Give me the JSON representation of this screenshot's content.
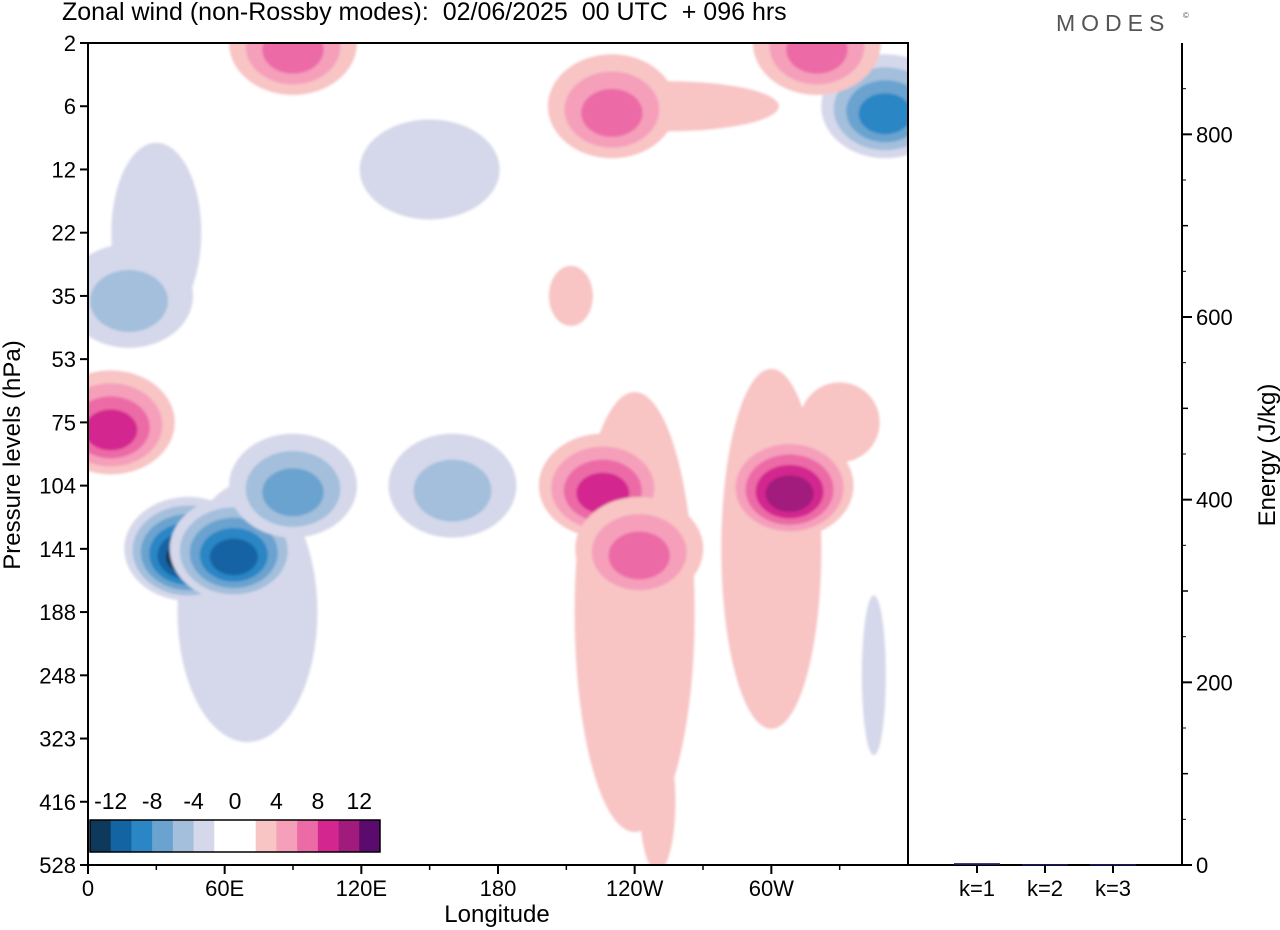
{
  "header": {
    "title": "Zonal wind (non-Rossby modes):  02/06/2025  00 UTC  + 096 hrs",
    "brand": "MODES",
    "brand_mark": "©"
  },
  "chart_data": [
    {
      "type": "heatmap",
      "title": "Zonal wind (non-Rossby modes):  02/06/2025  00 UTC  + 096 hrs",
      "xlabel": "Longitude",
      "ylabel": "Pressure levels (hPa)",
      "x_ticks": [
        "0",
        "60E",
        "120E",
        "180",
        "120W",
        "60W"
      ],
      "x_tick_degrees": [
        0,
        60,
        120,
        180,
        240,
        300
      ],
      "xlim": [
        0,
        360
      ],
      "y_ticks": [
        "2",
        "6",
        "12",
        "22",
        "35",
        "53",
        "75",
        "104",
        "141",
        "188",
        "248",
        "323",
        "416",
        "528"
      ],
      "y_axis": "pressure levels, top to bottom",
      "colorbar": {
        "labels": [
          "-12",
          "-8",
          "-4",
          "0",
          "4",
          "8",
          "12"
        ],
        "levels": [
          -14,
          -12,
          -10,
          -8,
          -6,
          -4,
          -2,
          0,
          2,
          4,
          6,
          8,
          10,
          12,
          14
        ],
        "colors": [
          "#0d3a5c",
          "#1264a3",
          "#2b86c5",
          "#6aa3cf",
          "#a3bfdc",
          "#d5d8ea",
          "#ffffff",
          "#ffffff",
          "#f8c4c4",
          "#f59fbb",
          "#ec6ba6",
          "#d3268f",
          "#a11b7d",
          "#5b0a6e"
        ]
      },
      "features": [
        {
          "kind": "minimum",
          "lon": 44,
          "level": "141",
          "value": -12
        },
        {
          "kind": "minimum",
          "lon": 64,
          "level": "141",
          "value": -10
        },
        {
          "kind": "minimum",
          "lon": 90,
          "level": "104",
          "value": -6
        },
        {
          "kind": "minimum",
          "lon": 160,
          "level": "104",
          "value": -4
        },
        {
          "kind": "minimum",
          "lon": 18,
          "level": "35",
          "value": -4
        },
        {
          "kind": "minimum",
          "lon": 350,
          "level": "6",
          "value": -8
        },
        {
          "kind": "maximum",
          "lon": 10,
          "level": "75",
          "value": 8
        },
        {
          "kind": "maximum",
          "lon": 226,
          "level": "104",
          "value": 8
        },
        {
          "kind": "maximum",
          "lon": 242,
          "level": "141",
          "value": 6
        },
        {
          "kind": "maximum",
          "lon": 308,
          "level": "104",
          "value": 10
        },
        {
          "kind": "maximum",
          "lon": 90,
          "level": "2",
          "value": 6
        },
        {
          "kind": "maximum",
          "lon": 230,
          "level": "6",
          "value": 6
        },
        {
          "kind": "maximum",
          "lon": 320,
          "level": "2",
          "value": 6
        }
      ]
    },
    {
      "type": "bar",
      "ylabel": "Energy (J/kg)",
      "categories": [
        "k=1",
        "k=2",
        "k=3"
      ],
      "values": [
        2,
        1,
        1
      ],
      "ylim": [
        0,
        900
      ],
      "y_ticks": [
        "0",
        "200",
        "400",
        "600",
        "800"
      ],
      "bar_color": "#1a1a5e"
    }
  ]
}
